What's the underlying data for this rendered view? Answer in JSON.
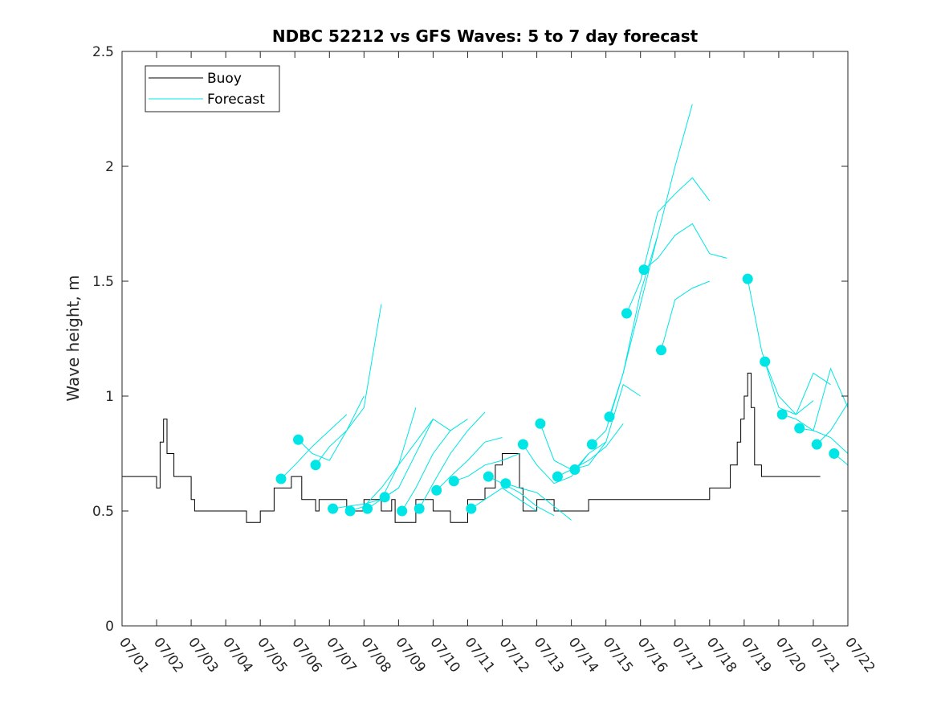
{
  "chart_data": {
    "type": "line",
    "title": "NDBC 52212 vs GFS Waves: 5 to 7 day forecast",
    "xlabel": "",
    "ylabel": "Wave height, m",
    "x_axis": {
      "type": "date",
      "start": "07/01",
      "end": "07/22",
      "unit": "day"
    },
    "ylim": [
      0,
      2.5
    ],
    "yticks": [
      {
        "value": 0,
        "label": "0"
      },
      {
        "value": 0.5,
        "label": "0.5"
      },
      {
        "value": 1,
        "label": "1"
      },
      {
        "value": 1.5,
        "label": "1.5"
      },
      {
        "value": 2,
        "label": "2"
      },
      {
        "value": 2.5,
        "label": "2.5"
      }
    ],
    "xticks": [
      {
        "value": 0,
        "label": "07/01"
      },
      {
        "value": 1,
        "label": "07/02"
      },
      {
        "value": 2,
        "label": "07/03"
      },
      {
        "value": 3,
        "label": "07/04"
      },
      {
        "value": 4,
        "label": "07/05"
      },
      {
        "value": 5,
        "label": "07/06"
      },
      {
        "value": 6,
        "label": "07/07"
      },
      {
        "value": 7,
        "label": "07/08"
      },
      {
        "value": 8,
        "label": "07/09"
      },
      {
        "value": 9,
        "label": "07/10"
      },
      {
        "value": 10,
        "label": "07/11"
      },
      {
        "value": 11,
        "label": "07/12"
      },
      {
        "value": 12,
        "label": "07/13"
      },
      {
        "value": 13,
        "label": "07/14"
      },
      {
        "value": 14,
        "label": "07/15"
      },
      {
        "value": 15,
        "label": "07/16"
      },
      {
        "value": 16,
        "label": "07/17"
      },
      {
        "value": 17,
        "label": "07/18"
      },
      {
        "value": 18,
        "label": "07/19"
      },
      {
        "value": 19,
        "label": "07/20"
      },
      {
        "value": 20,
        "label": "07/21"
      },
      {
        "value": 21,
        "label": "07/22"
      }
    ],
    "grid": false,
    "legend": {
      "position": "top-left",
      "entries": [
        {
          "label": "Buoy",
          "color": "#000000"
        },
        {
          "label": "Forecast",
          "color": "#00e5e5"
        }
      ]
    },
    "colors": {
      "buoy": "#000000",
      "forecast": "#00e5e5"
    },
    "series": [
      {
        "name": "Buoy",
        "color": "#000000",
        "x": [
          0,
          0.6,
          1.0,
          1.1,
          1.2,
          1.3,
          1.5,
          1.8,
          2.0,
          2.1,
          2.2,
          3.5,
          3.6,
          3.8,
          4.0,
          4.3,
          4.4,
          4.9,
          5.1,
          5.2,
          5.6,
          5.7,
          6.5,
          7.0,
          7.5,
          7.8,
          7.9,
          8.4,
          8.5,
          9.0,
          9.5,
          10.0,
          10.4,
          10.5,
          10.8,
          11.0,
          11.5,
          11.6,
          12.0,
          12.5,
          13.0,
          13.5,
          14.0,
          15.0,
          16.0,
          16.5,
          17.0,
          17.5,
          17.6,
          17.8,
          17.9,
          18.0,
          18.1,
          18.2,
          18.3,
          18.5,
          19.0,
          19.5,
          20.0,
          20.2
        ],
        "y": [
          0.65,
          0.65,
          0.6,
          0.8,
          0.9,
          0.75,
          0.65,
          0.65,
          0.55,
          0.5,
          0.5,
          0.5,
          0.45,
          0.45,
          0.5,
          0.5,
          0.6,
          0.65,
          0.65,
          0.55,
          0.5,
          0.55,
          0.5,
          0.55,
          0.5,
          0.55,
          0.45,
          0.45,
          0.55,
          0.5,
          0.45,
          0.55,
          0.55,
          0.6,
          0.7,
          0.75,
          0.6,
          0.5,
          0.55,
          0.5,
          0.5,
          0.55,
          0.55,
          0.55,
          0.55,
          0.55,
          0.6,
          0.6,
          0.7,
          0.8,
          0.9,
          1.0,
          1.1,
          0.95,
          0.7,
          0.65,
          0.65,
          0.65,
          0.65,
          0.65
        ]
      },
      {
        "name": "Forecast",
        "color": "#00e5e5",
        "x": [
          4.6,
          5.0,
          5.5,
          6.0,
          6.5
        ],
        "y": [
          0.64,
          0.7,
          0.78,
          0.85,
          0.92
        ]
      },
      {
        "name": "Forecast",
        "color": "#00e5e5",
        "x": [
          5.1,
          5.5,
          6.0,
          6.5,
          7.0
        ],
        "y": [
          0.81,
          0.75,
          0.72,
          0.85,
          1.0
        ]
      },
      {
        "name": "Forecast",
        "color": "#00e5e5",
        "x": [
          5.6,
          6.0,
          6.5,
          7.0,
          7.5
        ],
        "y": [
          0.7,
          0.78,
          0.85,
          0.95,
          1.4
        ]
      },
      {
        "name": "Forecast",
        "color": "#00e5e5",
        "x": [
          6.1,
          6.5,
          7.0,
          7.5,
          8.0
        ],
        "y": [
          0.51,
          0.52,
          0.53,
          0.55,
          0.6
        ]
      },
      {
        "name": "Forecast",
        "color": "#00e5e5",
        "x": [
          6.6,
          7.0,
          7.5,
          8.0,
          8.5
        ],
        "y": [
          0.5,
          0.52,
          0.6,
          0.7,
          0.95
        ]
      },
      {
        "name": "Forecast",
        "color": "#00e5e5",
        "x": [
          7.1,
          7.5,
          8.0,
          8.5,
          9.0
        ],
        "y": [
          0.51,
          0.55,
          0.7,
          0.8,
          0.9
        ]
      },
      {
        "name": "Forecast",
        "color": "#00e5e5",
        "x": [
          7.6,
          8.0,
          8.5,
          9.0,
          9.5
        ],
        "y": [
          0.56,
          0.6,
          0.75,
          0.9,
          0.85
        ]
      },
      {
        "name": "Forecast",
        "color": "#00e5e5",
        "x": [
          8.1,
          8.5,
          9.0,
          9.5,
          10.0
        ],
        "y": [
          0.5,
          0.6,
          0.75,
          0.85,
          0.9
        ]
      },
      {
        "name": "Forecast",
        "color": "#00e5e5",
        "x": [
          8.6,
          9.0,
          9.5,
          10.0,
          10.5
        ],
        "y": [
          0.51,
          0.62,
          0.75,
          0.85,
          0.93
        ]
      },
      {
        "name": "Forecast",
        "color": "#00e5e5",
        "x": [
          9.1,
          9.5,
          10.0,
          10.5,
          11.0
        ],
        "y": [
          0.59,
          0.65,
          0.72,
          0.8,
          0.82
        ]
      },
      {
        "name": "Forecast",
        "color": "#00e5e5",
        "x": [
          9.6,
          10.0,
          10.5,
          11.0,
          11.5
        ],
        "y": [
          0.63,
          0.65,
          0.7,
          0.72,
          0.75
        ]
      },
      {
        "name": "Forecast",
        "color": "#00e5e5",
        "x": [
          10.1,
          10.5,
          11.0,
          11.5,
          12.0
        ],
        "y": [
          0.51,
          0.55,
          0.6,
          0.55,
          0.5
        ]
      },
      {
        "name": "Forecast",
        "color": "#00e5e5",
        "x": [
          10.6,
          11.0,
          11.5,
          12.0,
          12.5
        ],
        "y": [
          0.65,
          0.62,
          0.58,
          0.52,
          0.48
        ]
      },
      {
        "name": "Forecast",
        "color": "#00e5e5",
        "x": [
          11.1,
          11.5,
          12.0,
          12.5,
          13.0
        ],
        "y": [
          0.62,
          0.6,
          0.58,
          0.52,
          0.46
        ]
      },
      {
        "name": "Forecast",
        "color": "#00e5e5",
        "x": [
          11.6,
          12.0,
          12.5,
          13.0,
          13.5
        ],
        "y": [
          0.79,
          0.7,
          0.62,
          0.65,
          0.75
        ]
      },
      {
        "name": "Forecast",
        "color": "#00e5e5",
        "x": [
          12.1,
          12.5,
          13.0,
          13.5,
          14.0
        ],
        "y": [
          0.88,
          0.72,
          0.68,
          0.7,
          0.8
        ]
      },
      {
        "name": "Forecast",
        "color": "#00e5e5",
        "x": [
          12.6,
          13.0,
          13.5,
          14.0,
          14.5
        ],
        "y": [
          0.65,
          0.68,
          0.72,
          0.78,
          0.88
        ]
      },
      {
        "name": "Forecast",
        "color": "#00e5e5",
        "x": [
          13.1,
          13.5,
          14.0,
          14.5,
          15.0
        ],
        "y": [
          0.68,
          0.75,
          0.8,
          1.05,
          1.0
        ]
      },
      {
        "name": "Forecast",
        "color": "#00e5e5",
        "x": [
          13.6,
          14.0,
          14.5,
          15.0,
          15.5
        ],
        "y": [
          0.79,
          0.85,
          1.1,
          1.4,
          1.7
        ]
      },
      {
        "name": "Forecast",
        "color": "#00e5e5",
        "x": [
          14.1,
          14.5,
          15.0,
          15.5,
          16.0,
          16.5
        ],
        "y": [
          0.91,
          1.1,
          1.45,
          1.7,
          2.0,
          2.27
        ]
      },
      {
        "name": "Forecast",
        "color": "#00e5e5",
        "x": [
          14.6,
          15.0,
          15.5,
          16.0,
          16.5,
          17.0
        ],
        "y": [
          1.36,
          1.5,
          1.8,
          1.88,
          1.95,
          1.85
        ]
      },
      {
        "name": "Forecast",
        "color": "#00e5e5",
        "x": [
          15.1,
          15.5,
          16.0,
          16.5,
          17.0,
          17.5
        ],
        "y": [
          1.55,
          1.6,
          1.7,
          1.75,
          1.62,
          1.6
        ]
      },
      {
        "name": "Forecast",
        "color": "#00e5e5",
        "x": [
          15.6,
          16.0,
          16.5,
          17.0
        ],
        "y": [
          1.2,
          1.42,
          1.47,
          1.5
        ]
      },
      {
        "name": "Forecast",
        "color": "#00e5e5",
        "x": [
          18.1,
          18.5,
          19.0,
          19.5,
          20.0
        ],
        "y": [
          1.51,
          1.2,
          0.95,
          0.92,
          0.98
        ]
      },
      {
        "name": "Forecast",
        "color": "#00e5e5",
        "x": [
          18.6,
          19.0,
          19.5,
          20.0,
          20.5
        ],
        "y": [
          1.15,
          1.0,
          0.92,
          1.1,
          1.05
        ]
      },
      {
        "name": "Forecast",
        "color": "#00e5e5",
        "x": [
          19.1,
          19.5,
          20.0,
          20.5,
          21.0
        ],
        "y": [
          0.92,
          0.9,
          0.85,
          1.12,
          0.95
        ]
      },
      {
        "name": "Forecast",
        "color": "#00e5e5",
        "x": [
          19.6,
          20.0,
          20.5,
          21.0
        ],
        "y": [
          0.86,
          0.85,
          0.82,
          0.75
        ]
      },
      {
        "name": "Forecast",
        "color": "#00e5e5",
        "x": [
          20.1,
          20.5,
          21.0
        ],
        "y": [
          0.79,
          0.85,
          0.97
        ]
      },
      {
        "name": "Forecast",
        "color": "#00e5e5",
        "x": [
          20.6,
          21.0
        ],
        "y": [
          0.75,
          0.7
        ]
      }
    ]
  }
}
